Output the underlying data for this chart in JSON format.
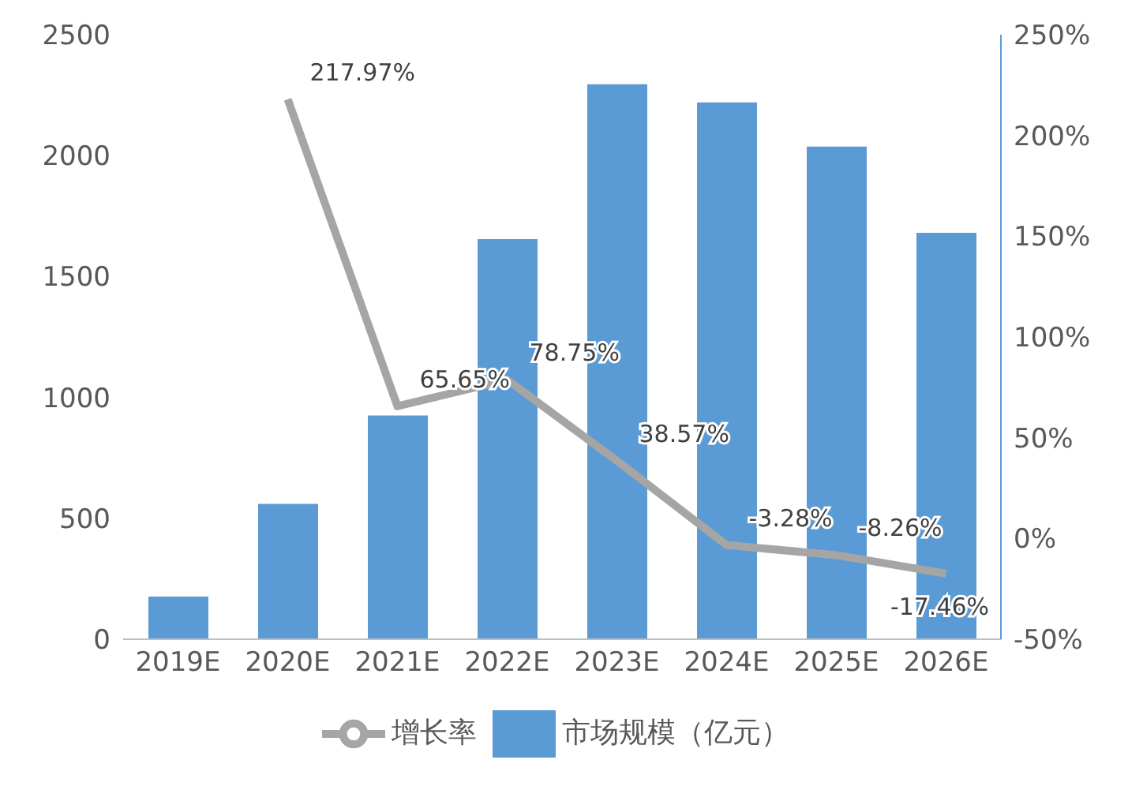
{
  "chart_data": {
    "type": "bar",
    "categories": [
      "2019E",
      "2020E",
      "2021E",
      "2022E",
      "2023E",
      "2024E",
      "2025E",
      "2026E"
    ],
    "series": [
      {
        "name": "市场规模（亿元）",
        "color": "#5b9bd5",
        "values": [
          176,
          560,
          925,
          1655,
          2295,
          2220,
          2037,
          1681
        ]
      },
      {
        "name": "增长率",
        "type": "line",
        "axis": "y2",
        "color": "#a5a5a5",
        "values": [
          null,
          217.97,
          65.65,
          78.75,
          38.57,
          -3.28,
          -8.26,
          -17.46
        ],
        "value_labels": [
          null,
          "217.97%",
          "65.65%",
          "78.75%",
          "38.57%",
          "-3.28%",
          "-8.26%",
          "-17.46%"
        ]
      }
    ],
    "ylim": [
      0,
      2500
    ],
    "yticks": [
      0,
      500,
      1000,
      1500,
      2000,
      2500
    ],
    "y2lim": [
      -50,
      250
    ],
    "y2ticks": [
      {
        "value": -50,
        "label": "-50%"
      },
      {
        "value": 0,
        "label": "0%"
      },
      {
        "value": 50,
        "label": "50%"
      },
      {
        "value": 100,
        "label": "100%"
      },
      {
        "value": 150,
        "label": "150%"
      },
      {
        "value": 200,
        "label": "200%"
      },
      {
        "value": 250,
        "label": "250%"
      }
    ],
    "grid": false,
    "legend": "bottom",
    "marker": "none",
    "line_style": "solid"
  }
}
